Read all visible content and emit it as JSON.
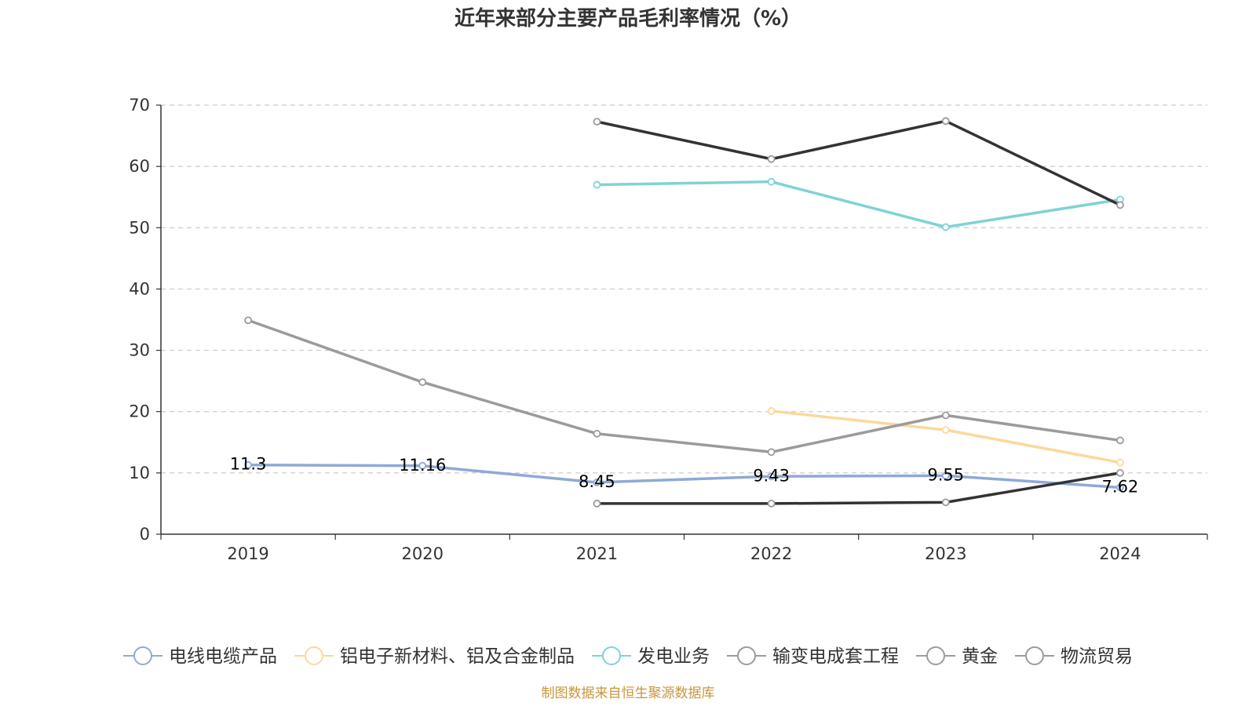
{
  "chart_data": {
    "type": "line",
    "title": "近年来部分主要产品毛利率情况（%）",
    "categories": [
      "2019",
      "2020",
      "2021",
      "2022",
      "2023",
      "2024"
    ],
    "ylim": [
      0,
      70
    ],
    "yticks": [
      0,
      10,
      20,
      30,
      40,
      50,
      60,
      70
    ],
    "grid": true,
    "legend_position": "bottom",
    "series": [
      {
        "name": "电线电缆产品",
        "color": "#8fa9d6",
        "values": [
          11.3,
          11.16,
          8.45,
          9.43,
          9.55,
          7.62
        ],
        "labels": [
          "11.3",
          "11.16",
          "8.45",
          "9.43",
          "9.55",
          "7.62"
        ]
      },
      {
        "name": "铝电子新材料、铝及合金制品",
        "color": "#fcd89a",
        "values": [
          null,
          null,
          null,
          20.1,
          17.0,
          11.7
        ]
      },
      {
        "name": "发电业务",
        "color": "#7fd3d4",
        "values": [
          null,
          null,
          57.0,
          57.5,
          50.1,
          54.6
        ]
      },
      {
        "name": "输变电成套工程",
        "color": "#9b9b9b",
        "values": [
          34.9,
          24.8,
          16.4,
          13.4,
          19.4,
          15.3
        ]
      },
      {
        "name": "黄金",
        "color": "#333333",
        "values": [
          null,
          null,
          67.3,
          61.2,
          67.4,
          53.7
        ]
      },
      {
        "name": "物流贸易",
        "color": "#333333",
        "values": [
          null,
          null,
          5.0,
          5.0,
          5.2,
          10.0
        ]
      }
    ],
    "source": "制图数据来自恒生聚源数据库"
  }
}
